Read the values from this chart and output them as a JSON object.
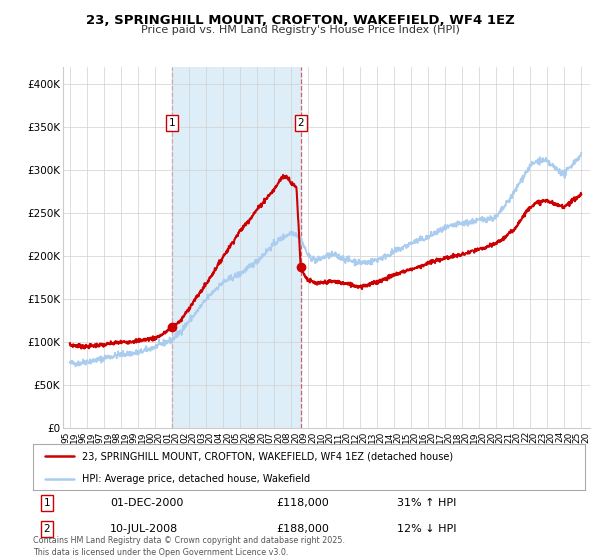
{
  "title": "23, SPRINGHILL MOUNT, CROFTON, WAKEFIELD, WF4 1EZ",
  "subtitle": "Price paid vs. HM Land Registry's House Price Index (HPI)",
  "legend_line1": "23, SPRINGHILL MOUNT, CROFTON, WAKEFIELD, WF4 1EZ (detached house)",
  "legend_line2": "HPI: Average price, detached house, Wakefield",
  "annotation1_date": "01-DEC-2000",
  "annotation1_price": "£118,000",
  "annotation1_hpi": "31% ↑ HPI",
  "annotation2_date": "10-JUL-2008",
  "annotation2_price": "£188,000",
  "annotation2_hpi": "12% ↓ HPI",
  "footer": "Contains HM Land Registry data © Crown copyright and database right 2025.\nThis data is licensed under the Open Government Licence v3.0.",
  "red_color": "#cc0000",
  "blue_color": "#aaccee",
  "shaded_color": "#deeef8",
  "marker1_x": 2001.0,
  "marker1_y": 118000,
  "marker2_x": 2008.54,
  "marker2_y": 188000,
  "ylim": [
    0,
    420000
  ],
  "xlim_start": 1994.6,
  "xlim_end": 2025.5,
  "yticks": [
    0,
    50000,
    100000,
    150000,
    200000,
    250000,
    300000,
    350000,
    400000
  ],
  "ytick_labels": [
    "£0",
    "£50K",
    "£100K",
    "£150K",
    "£200K",
    "£250K",
    "£300K",
    "£350K",
    "£400K"
  ],
  "xticks": [
    1995,
    1996,
    1997,
    1998,
    1999,
    2000,
    2001,
    2002,
    2003,
    2004,
    2005,
    2006,
    2007,
    2008,
    2009,
    2010,
    2011,
    2012,
    2013,
    2014,
    2015,
    2016,
    2017,
    2018,
    2019,
    2020,
    2021,
    2022,
    2023,
    2024,
    2025
  ]
}
